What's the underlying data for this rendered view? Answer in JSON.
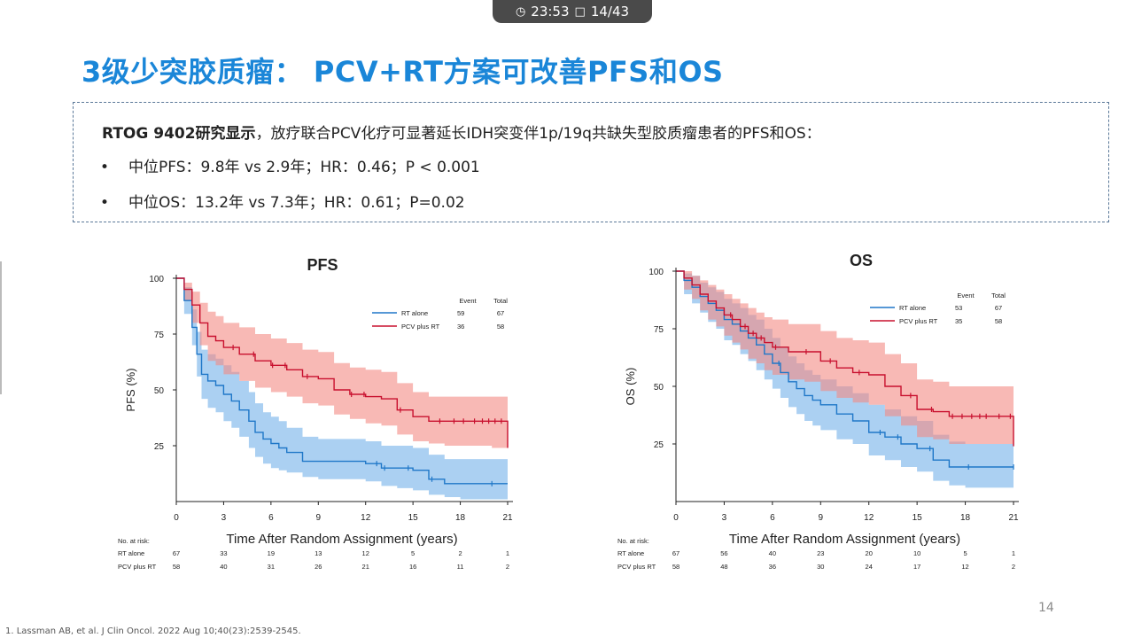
{
  "overlay": {
    "time": "23:53",
    "page": "14/43",
    "clock_icon": "clock-icon",
    "page_icon": "page-icon"
  },
  "title": "3级少突胶质瘤： PCV+RT方案可改善PFS和OS",
  "summary": {
    "lead_bold": "RTOG 9402研究显示",
    "lead_rest": "，放疗联合PCV化疗可显著延长IDH突变伴1p/19q共缺失型胶质瘤患者的PFS和OS：",
    "bullets": [
      "中位PFS：9.8年 vs 2.9年；HR：0.46；P < 0.001",
      "中位OS：13.2年 vs 7.3年；HR：0.61；P=0.02"
    ]
  },
  "colors": {
    "title": "#1a86d8",
    "rt": "#1f77c8",
    "rt_band": "#8fc0ee",
    "pcv": "#c8102e",
    "pcv_band": "#f48a84"
  },
  "chart_data": [
    {
      "type": "line",
      "title": "PFS",
      "xlabel": "Time After Random Assignment (years)",
      "ylabel": "PFS (%)",
      "xlim": [
        0,
        21
      ],
      "ylim": [
        0,
        100
      ],
      "xticks": [
        0,
        3,
        6,
        9,
        12,
        15,
        18,
        21
      ],
      "yticks": [
        25,
        50,
        75,
        100
      ],
      "legend_header": [
        "Event",
        "Total"
      ],
      "series": [
        {
          "name": "RT alone",
          "event": "59",
          "total": "67",
          "x": [
            0,
            0.5,
            1,
            1.3,
            1.6,
            2,
            2.5,
            3,
            3.5,
            4,
            4.6,
            5,
            5.5,
            6,
            6.5,
            7,
            8,
            9,
            10,
            12,
            13,
            14,
            15,
            16,
            17,
            18,
            19,
            20,
            21
          ],
          "y": [
            100,
            90,
            78,
            66,
            57,
            54,
            52,
            48,
            45,
            41,
            36,
            31,
            28,
            26,
            24,
            22,
            18,
            18,
            18,
            17,
            15,
            15,
            14,
            10,
            8,
            8,
            8,
            8,
            8
          ],
          "ci_low": [
            100,
            84,
            70,
            56,
            46,
            42,
            40,
            36,
            33,
            29,
            24,
            20,
            17,
            15,
            14,
            13,
            11,
            10,
            10,
            9,
            7,
            6,
            5,
            3,
            2,
            1,
            1,
            1,
            1
          ],
          "ci_high": [
            100,
            96,
            86,
            76,
            68,
            66,
            64,
            61,
            58,
            54,
            49,
            44,
            40,
            38,
            36,
            33,
            29,
            28,
            28,
            27,
            25,
            25,
            24,
            21,
            19,
            19,
            19,
            19,
            19
          ],
          "censor_x": [
            12.7,
            13.2,
            14.7,
            16.2,
            20
          ]
        },
        {
          "name": "PCV plus RT",
          "event": "36",
          "total": "58",
          "x": [
            0,
            0.5,
            1,
            1.5,
            2,
            2.5,
            3,
            4,
            5,
            6,
            7,
            8,
            9,
            10,
            11,
            12,
            13,
            14,
            15,
            16,
            17,
            18,
            19,
            20,
            20.9,
            21
          ],
          "y": [
            100,
            95,
            88,
            80,
            74,
            72,
            69,
            66,
            63,
            61,
            59,
            56,
            55,
            50,
            48,
            47,
            46,
            41,
            38,
            36,
            36,
            36,
            36,
            36,
            36,
            24
          ],
          "ci_low": [
            100,
            90,
            80,
            70,
            63,
            61,
            57,
            54,
            51,
            49,
            47,
            44,
            43,
            39,
            37,
            35,
            34,
            30,
            27,
            26,
            25,
            25,
            25,
            24,
            24,
            16
          ],
          "ci_high": [
            100,
            98,
            94,
            89,
            85,
            83,
            80,
            78,
            75,
            73,
            71,
            68,
            67,
            62,
            60,
            59,
            58,
            53,
            49,
            47,
            47,
            47,
            47,
            47,
            47,
            38
          ],
          "censor_x": [
            3.6,
            4.9,
            6.1,
            6.9,
            8.3,
            11.1,
            11.9,
            14.2,
            16.7,
            17.6,
            18.2,
            18.9,
            19.4,
            19.8,
            20.2,
            20.6
          ]
        }
      ],
      "at_risk": {
        "label": "No. at risk:",
        "rows": [
          {
            "name": "RT alone",
            "values": [
              "67",
              "33",
              "19",
              "13",
              "12",
              "5",
              "2",
              "1"
            ]
          },
          {
            "name": "PCV plus RT",
            "values": [
              "58",
              "40",
              "31",
              "26",
              "21",
              "16",
              "11",
              "2"
            ]
          }
        ]
      }
    },
    {
      "type": "line",
      "title": "OS",
      "xlabel": "Time After Random Assignment (years)",
      "ylabel": "OS (%)",
      "xlim": [
        0,
        21
      ],
      "ylim": [
        0,
        100
      ],
      "xticks": [
        0,
        3,
        6,
        9,
        12,
        15,
        18,
        21
      ],
      "yticks": [
        25,
        50,
        75,
        100
      ],
      "legend_header": [
        "Event",
        "Total"
      ],
      "series": [
        {
          "name": "RT alone",
          "event": "53",
          "total": "67",
          "x": [
            0,
            0.5,
            1,
            1.5,
            2,
            2.5,
            3,
            3.5,
            4,
            4.5,
            5,
            5.5,
            6,
            6.5,
            7,
            7.5,
            8,
            8.5,
            9,
            10,
            11,
            12,
            13,
            14,
            15,
            16,
            17,
            18,
            19,
            20,
            21
          ],
          "y": [
            100,
            96,
            93,
            89,
            86,
            83,
            79,
            77,
            74,
            71,
            68,
            64,
            60,
            56,
            52,
            49,
            46,
            44,
            42,
            38,
            35,
            30,
            28,
            25,
            23,
            18,
            15,
            15,
            15,
            15,
            15
          ],
          "ci_low": [
            100,
            90,
            86,
            82,
            78,
            75,
            70,
            68,
            64,
            61,
            57,
            53,
            49,
            45,
            41,
            38,
            35,
            33,
            31,
            27,
            25,
            20,
            18,
            15,
            13,
            9,
            7,
            6,
            6,
            6,
            6
          ],
          "ci_high": [
            100,
            99,
            98,
            95,
            93,
            91,
            88,
            86,
            84,
            81,
            79,
            75,
            71,
            67,
            63,
            60,
            57,
            55,
            53,
            50,
            47,
            42,
            40,
            37,
            35,
            29,
            26,
            25,
            25,
            25,
            25
          ],
          "censor_x": [
            6.4,
            12.7,
            13.8,
            15.8,
            18.2,
            21
          ]
        },
        {
          "name": "PCV plus RT",
          "event": "35",
          "total": "58",
          "x": [
            0,
            0.5,
            1,
            1.5,
            2,
            2.5,
            3,
            3.5,
            4,
            4.5,
            5,
            5.5,
            6,
            7,
            8,
            9,
            10,
            11,
            12,
            13,
            14,
            15,
            16,
            17,
            18,
            19,
            20,
            20.9,
            21
          ],
          "y": [
            100,
            97,
            94,
            90,
            87,
            84,
            81,
            79,
            76,
            73,
            71,
            69,
            67,
            65,
            65,
            61,
            58,
            56,
            55,
            50,
            46,
            40,
            39,
            37,
            37,
            37,
            37,
            37,
            24
          ],
          "ci_low": [
            100,
            92,
            88,
            83,
            79,
            76,
            72,
            69,
            66,
            62,
            60,
            57,
            55,
            53,
            52,
            48,
            45,
            43,
            42,
            37,
            33,
            28,
            27,
            25,
            25,
            25,
            25,
            25,
            16
          ],
          "ci_high": [
            100,
            100,
            98,
            96,
            94,
            92,
            90,
            88,
            86,
            84,
            82,
            80,
            79,
            77,
            77,
            74,
            71,
            70,
            69,
            64,
            60,
            53,
            52,
            50,
            50,
            50,
            50,
            50,
            38
          ],
          "censor_x": [
            3.4,
            4.3,
            4.8,
            5.3,
            6.2,
            8.1,
            9.6,
            11.4,
            14.6,
            15.9,
            17.2,
            17.8,
            18.4,
            18.9,
            19.3,
            20.1,
            20.8
          ]
        }
      ],
      "at_risk": {
        "label": "No. at risk:",
        "rows": [
          {
            "name": "RT alone",
            "values": [
              "67",
              "56",
              "40",
              "23",
              "20",
              "10",
              "5",
              "1"
            ]
          },
          {
            "name": "PCV plus RT",
            "values": [
              "58",
              "48",
              "36",
              "30",
              "24",
              "17",
              "12",
              "2"
            ]
          }
        ]
      }
    }
  ],
  "page_number": "14",
  "reference": "1. Lassman AB, et al. J Clin Oncol. 2022 Aug 10;40(23):2539-2545."
}
